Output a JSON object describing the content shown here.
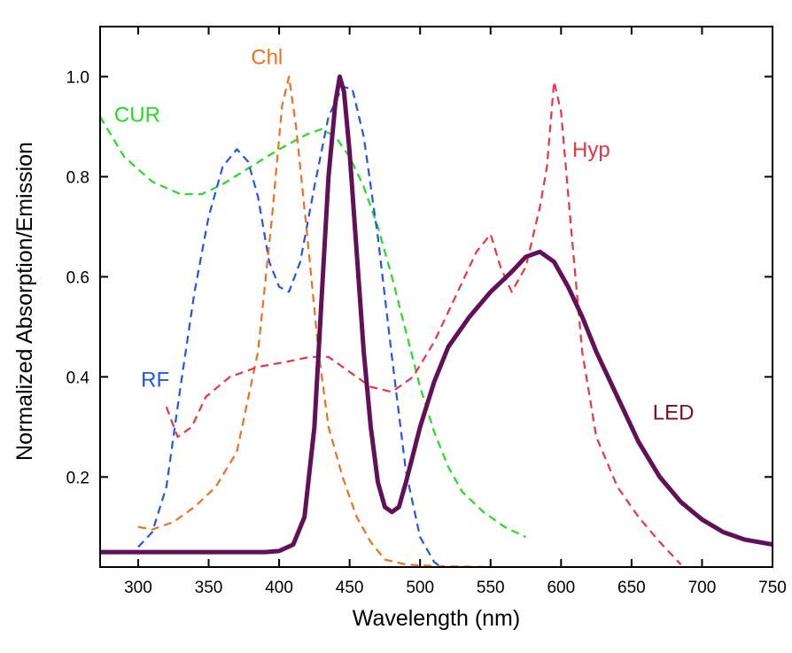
{
  "chart_data": {
    "type": "line",
    "title": "",
    "xlabel": "Wavelength (nm)",
    "ylabel": "Normalized Absorption/Emission",
    "xlim": [
      273,
      750
    ],
    "ylim": [
      0.02,
      1.1
    ],
    "x_ticks": [
      300,
      350,
      400,
      450,
      500,
      550,
      600,
      650,
      700,
      750
    ],
    "y_ticks": [
      0.2,
      0.4,
      0.6,
      0.8,
      1.0
    ],
    "x_tick_labels": [
      "300",
      "350",
      "400",
      "450",
      "500",
      "550",
      "600",
      "650",
      "700",
      "750"
    ],
    "y_tick_labels": [
      "0.2",
      "0.4",
      "0.6",
      "0.8",
      "1.0"
    ],
    "grid": false,
    "legend": "none",
    "series": [
      {
        "name": "CUR",
        "color": "#22dd22",
        "style": "dashed",
        "label_at": [
          283,
          0.91
        ],
        "points": [
          [
            273,
            0.92
          ],
          [
            290,
            0.84
          ],
          [
            310,
            0.79
          ],
          [
            330,
            0.765
          ],
          [
            345,
            0.765
          ],
          [
            360,
            0.785
          ],
          [
            380,
            0.82
          ],
          [
            400,
            0.855
          ],
          [
            420,
            0.885
          ],
          [
            430,
            0.895
          ],
          [
            440,
            0.88
          ],
          [
            450,
            0.84
          ],
          [
            460,
            0.78
          ],
          [
            470,
            0.7
          ],
          [
            480,
            0.6
          ],
          [
            490,
            0.49
          ],
          [
            500,
            0.38
          ],
          [
            510,
            0.29
          ],
          [
            520,
            0.22
          ],
          [
            530,
            0.17
          ],
          [
            545,
            0.13
          ],
          [
            560,
            0.1
          ],
          [
            575,
            0.08
          ]
        ]
      },
      {
        "name": "RF",
        "color": "#2255ee",
        "style": "dashed",
        "label_at": [
          302,
          0.38
        ],
        "points": [
          [
            300,
            0.06
          ],
          [
            310,
            0.09
          ],
          [
            320,
            0.18
          ],
          [
            330,
            0.38
          ],
          [
            340,
            0.57
          ],
          [
            350,
            0.72
          ],
          [
            360,
            0.82
          ],
          [
            370,
            0.855
          ],
          [
            378,
            0.83
          ],
          [
            385,
            0.76
          ],
          [
            393,
            0.63
          ],
          [
            400,
            0.58
          ],
          [
            407,
            0.57
          ],
          [
            415,
            0.63
          ],
          [
            425,
            0.78
          ],
          [
            435,
            0.92
          ],
          [
            445,
            0.98
          ],
          [
            452,
            0.975
          ],
          [
            460,
            0.88
          ],
          [
            470,
            0.68
          ],
          [
            480,
            0.44
          ],
          [
            490,
            0.21
          ],
          [
            500,
            0.08
          ],
          [
            510,
            0.03
          ],
          [
            515,
            0.02
          ]
        ]
      },
      {
        "name": "Chl",
        "color": "#f07020",
        "style": "dashed",
        "label_at": [
          380,
          1.025
        ],
        "points": [
          [
            300,
            0.1
          ],
          [
            310,
            0.095
          ],
          [
            325,
            0.11
          ],
          [
            340,
            0.14
          ],
          [
            355,
            0.18
          ],
          [
            370,
            0.25
          ],
          [
            385,
            0.45
          ],
          [
            395,
            0.72
          ],
          [
            402,
            0.94
          ],
          [
            407,
            1.0
          ],
          [
            412,
            0.9
          ],
          [
            420,
            0.68
          ],
          [
            428,
            0.45
          ],
          [
            435,
            0.3
          ],
          [
            445,
            0.2
          ],
          [
            455,
            0.12
          ],
          [
            465,
            0.07
          ],
          [
            475,
            0.035
          ],
          [
            490,
            0.025
          ],
          [
            510,
            0.022
          ],
          [
            530,
            0.021
          ],
          [
            550,
            0.02
          ]
        ]
      },
      {
        "name": "Hyp",
        "color": "#ee3344",
        "style": "dashed",
        "label_at": [
          608,
          0.84
        ],
        "points": [
          [
            320,
            0.34
          ],
          [
            328,
            0.28
          ],
          [
            338,
            0.3
          ],
          [
            348,
            0.36
          ],
          [
            365,
            0.4
          ],
          [
            385,
            0.42
          ],
          [
            405,
            0.43
          ],
          [
            422,
            0.44
          ],
          [
            435,
            0.44
          ],
          [
            450,
            0.41
          ],
          [
            465,
            0.38
          ],
          [
            480,
            0.37
          ],
          [
            495,
            0.4
          ],
          [
            510,
            0.47
          ],
          [
            525,
            0.56
          ],
          [
            540,
            0.65
          ],
          [
            550,
            0.685
          ],
          [
            557,
            0.62
          ],
          [
            565,
            0.57
          ],
          [
            575,
            0.62
          ],
          [
            585,
            0.74
          ],
          [
            590,
            0.82
          ],
          [
            595,
            0.99
          ],
          [
            600,
            0.93
          ],
          [
            607,
            0.7
          ],
          [
            615,
            0.45
          ],
          [
            625,
            0.28
          ],
          [
            640,
            0.18
          ],
          [
            655,
            0.12
          ],
          [
            670,
            0.07
          ],
          [
            680,
            0.04
          ],
          [
            685,
            0.025
          ]
        ]
      },
      {
        "name": "LED",
        "color": "#621058",
        "style": "solid",
        "label_color": "#7a1020",
        "label_at": [
          665,
          0.315
        ],
        "points": [
          [
            273,
            0.05
          ],
          [
            300,
            0.05
          ],
          [
            330,
            0.05
          ],
          [
            350,
            0.05
          ],
          [
            390,
            0.05
          ],
          [
            400,
            0.052
          ],
          [
            410,
            0.065
          ],
          [
            418,
            0.12
          ],
          [
            425,
            0.3
          ],
          [
            430,
            0.55
          ],
          [
            435,
            0.8
          ],
          [
            440,
            0.95
          ],
          [
            443,
            1.0
          ],
          [
            446,
            0.97
          ],
          [
            450,
            0.85
          ],
          [
            455,
            0.65
          ],
          [
            460,
            0.45
          ],
          [
            465,
            0.3
          ],
          [
            470,
            0.19
          ],
          [
            475,
            0.14
          ],
          [
            480,
            0.13
          ],
          [
            485,
            0.14
          ],
          [
            490,
            0.19
          ],
          [
            500,
            0.3
          ],
          [
            510,
            0.39
          ],
          [
            520,
            0.46
          ],
          [
            535,
            0.52
          ],
          [
            550,
            0.57
          ],
          [
            565,
            0.61
          ],
          [
            575,
            0.64
          ],
          [
            585,
            0.65
          ],
          [
            595,
            0.63
          ],
          [
            605,
            0.58
          ],
          [
            615,
            0.52
          ],
          [
            625,
            0.45
          ],
          [
            640,
            0.36
          ],
          [
            655,
            0.27
          ],
          [
            670,
            0.2
          ],
          [
            685,
            0.15
          ],
          [
            700,
            0.115
          ],
          [
            715,
            0.09
          ],
          [
            730,
            0.075
          ],
          [
            750,
            0.065
          ]
        ]
      }
    ]
  }
}
